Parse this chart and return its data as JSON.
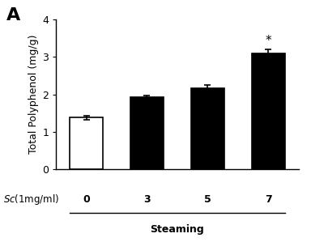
{
  "categories": [
    "0",
    "3",
    "5",
    "7"
  ],
  "values": [
    1.38,
    1.93,
    2.17,
    3.09
  ],
  "errors": [
    0.06,
    0.05,
    0.07,
    0.1
  ],
  "bar_colors": [
    "#ffffff",
    "#000000",
    "#000000",
    "#000000"
  ],
  "bar_edgecolors": [
    "#000000",
    "#000000",
    "#000000",
    "#000000"
  ],
  "ylabel": "Total Polyphenol (mg/g)",
  "sc_label": "$\\it{Sc}$(1mg/ml)",
  "steaming_label": "Steaming",
  "panel_label": "A",
  "ylim": [
    0,
    4
  ],
  "yticks": [
    0,
    1,
    2,
    3,
    4
  ],
  "significance": [
    false,
    false,
    false,
    true
  ],
  "sig_symbol": "*",
  "background_color": "#ffffff",
  "bar_width": 0.55,
  "capsize": 3
}
